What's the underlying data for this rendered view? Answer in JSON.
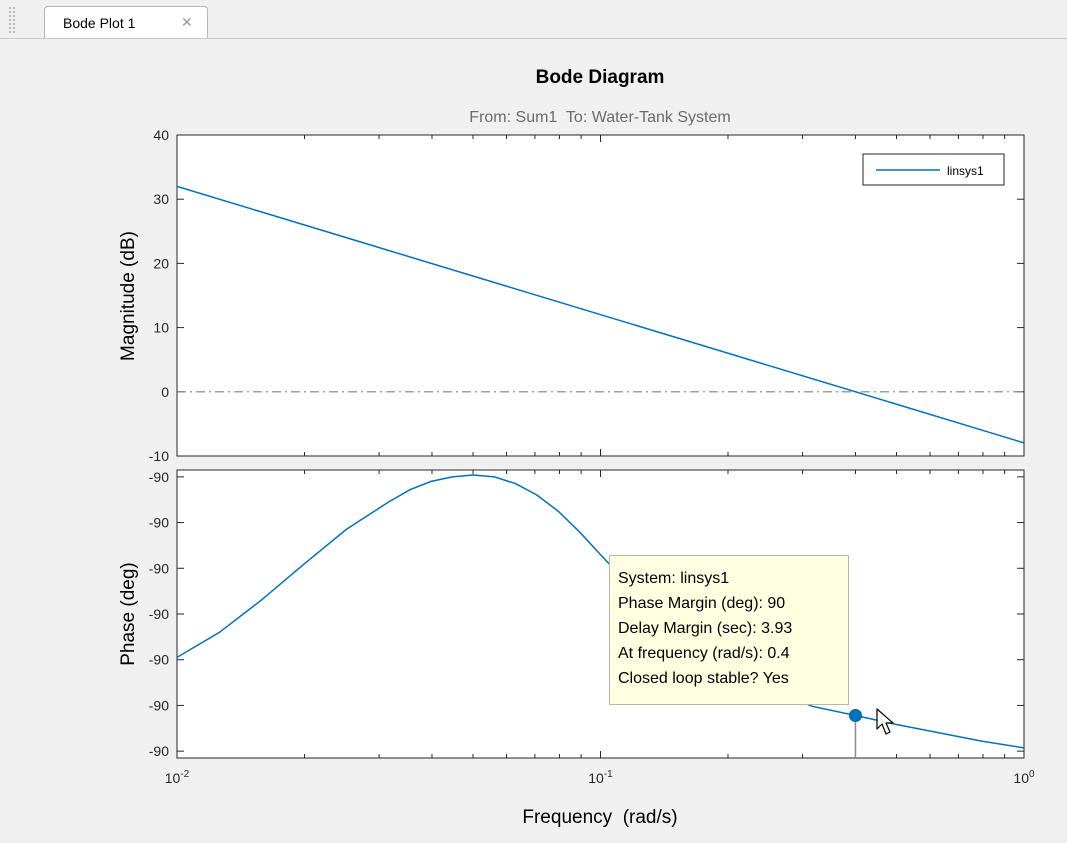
{
  "tab": {
    "label": "Bode Plot 1",
    "close_glyph": "✕"
  },
  "chart_data": {
    "type": "line",
    "title": "Bode Diagram",
    "subtitle": "From: Sum1  To: Water-Tank System",
    "xlabel": "Frequency  (rad/s)",
    "xscale": "log",
    "xlim": [
      0.01,
      1
    ],
    "x_tick_labels": [
      {
        "base": "10",
        "exp": "-2"
      },
      {
        "base": "10",
        "exp": "-1"
      },
      {
        "base": "10",
        "exp": "0"
      }
    ],
    "legend": {
      "location": "top-right",
      "entries": [
        "linsys1"
      ]
    },
    "color": "#0072bd",
    "panels": [
      {
        "name": "magnitude",
        "ylabel": "Magnitude (dB)",
        "ylim": [
          -10,
          40
        ],
        "yticks": [
          -10,
          0,
          10,
          20,
          30,
          40
        ],
        "ytick_labels": [
          "-10",
          "0",
          "10",
          "20",
          "30",
          "40"
        ],
        "reference_line": {
          "y": 0,
          "style": "dash-dot"
        },
        "series": [
          {
            "name": "linsys1",
            "x": [
              0.01,
              0.4,
              1
            ],
            "y": [
              32.0,
              0.0,
              -7.96
            ]
          }
        ]
      },
      {
        "name": "phase",
        "ylabel": "Phase (deg)",
        "ylim": [
          -0.15,
          6.15
        ],
        "yticks": [
          0,
          1,
          2,
          3,
          4,
          5,
          6
        ],
        "ytick_labels": [
          "-90",
          "-90",
          "-90",
          "-90",
          "-90",
          "-90",
          "-90"
        ],
        "series": [
          {
            "name": "linsys1",
            "x": [
              0.01,
              0.0126,
              0.0158,
              0.02,
              0.0251,
              0.0316,
              0.0355,
              0.0398,
              0.0447,
              0.05,
              0.0562,
              0.0631,
              0.0708,
              0.0794,
              0.0891,
              0.1,
              0.1122,
              0.1259,
              0.1585,
              0.1995,
              0.2512,
              0.3162,
              0.4,
              0.5012,
              0.631,
              0.7943,
              1.0
            ],
            "y": [
              2.05,
              2.6,
              3.3,
              4.1,
              4.85,
              5.45,
              5.72,
              5.9,
              6.0,
              6.04,
              6.0,
              5.85,
              5.6,
              5.25,
              4.8,
              4.3,
              3.8,
              3.3,
              2.5,
              1.85,
              1.35,
              0.98,
              0.78,
              0.58,
              0.4,
              0.22,
              0.07
            ]
          }
        ]
      }
    ],
    "datatip": {
      "x": 0.4,
      "y": 0.78,
      "lines": [
        "System: linsys1",
        "Phase Margin (deg): 90",
        "Delay Margin (sec): 3.93",
        "At frequency (rad/s): 0.4",
        "Closed loop stable? Yes"
      ]
    }
  }
}
